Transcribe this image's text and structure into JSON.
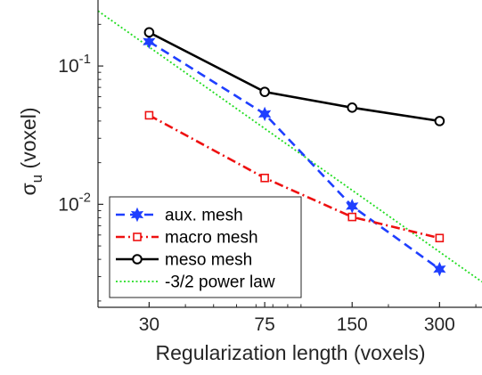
{
  "chart_data": {
    "type": "line",
    "xscale": "log",
    "yscale": "log",
    "xlim": [
      20,
      420
    ],
    "ylim": [
      0.0018,
      0.3
    ],
    "xticks": [
      30,
      75,
      150,
      300
    ],
    "xtick_labels": [
      "30",
      "75",
      "150",
      "300"
    ],
    "ytick_labels": [
      {
        "value": 0.1,
        "base": "10",
        "exp": "-1"
      },
      {
        "value": 0.01,
        "base": "10",
        "exp": "-2"
      }
    ],
    "xlabel": "Regularization length (voxels)",
    "ylabel": {
      "symbol": "σ",
      "subscript": "u",
      "rest": " (voxel)"
    },
    "legend_position": "bottom-left",
    "grid": false,
    "series": [
      {
        "name": "aux. mesh",
        "color": "#1f3fff",
        "dash": "dashed",
        "marker": "hexagram",
        "x": [
          30,
          75,
          150,
          300
        ],
        "y": [
          0.15,
          0.045,
          0.0097,
          0.0034
        ]
      },
      {
        "name": "macro mesh",
        "color": "#ee1111",
        "dash": "dashdot",
        "marker": "square",
        "x": [
          30,
          75,
          150,
          300
        ],
        "y": [
          0.044,
          0.0155,
          0.0081,
          0.0057
        ]
      },
      {
        "name": "meso mesh",
        "color": "#000000",
        "dash": "solid",
        "marker": "circle",
        "x": [
          30,
          75,
          150,
          300
        ],
        "y": [
          0.175,
          0.065,
          0.05,
          0.04
        ]
      },
      {
        "name": "-3/2 power law",
        "color": "#22dd22",
        "dash": "dotted",
        "marker": "none",
        "x": [
          20,
          420
        ],
        "y": [
          0.25,
          0.00275
        ]
      }
    ]
  }
}
